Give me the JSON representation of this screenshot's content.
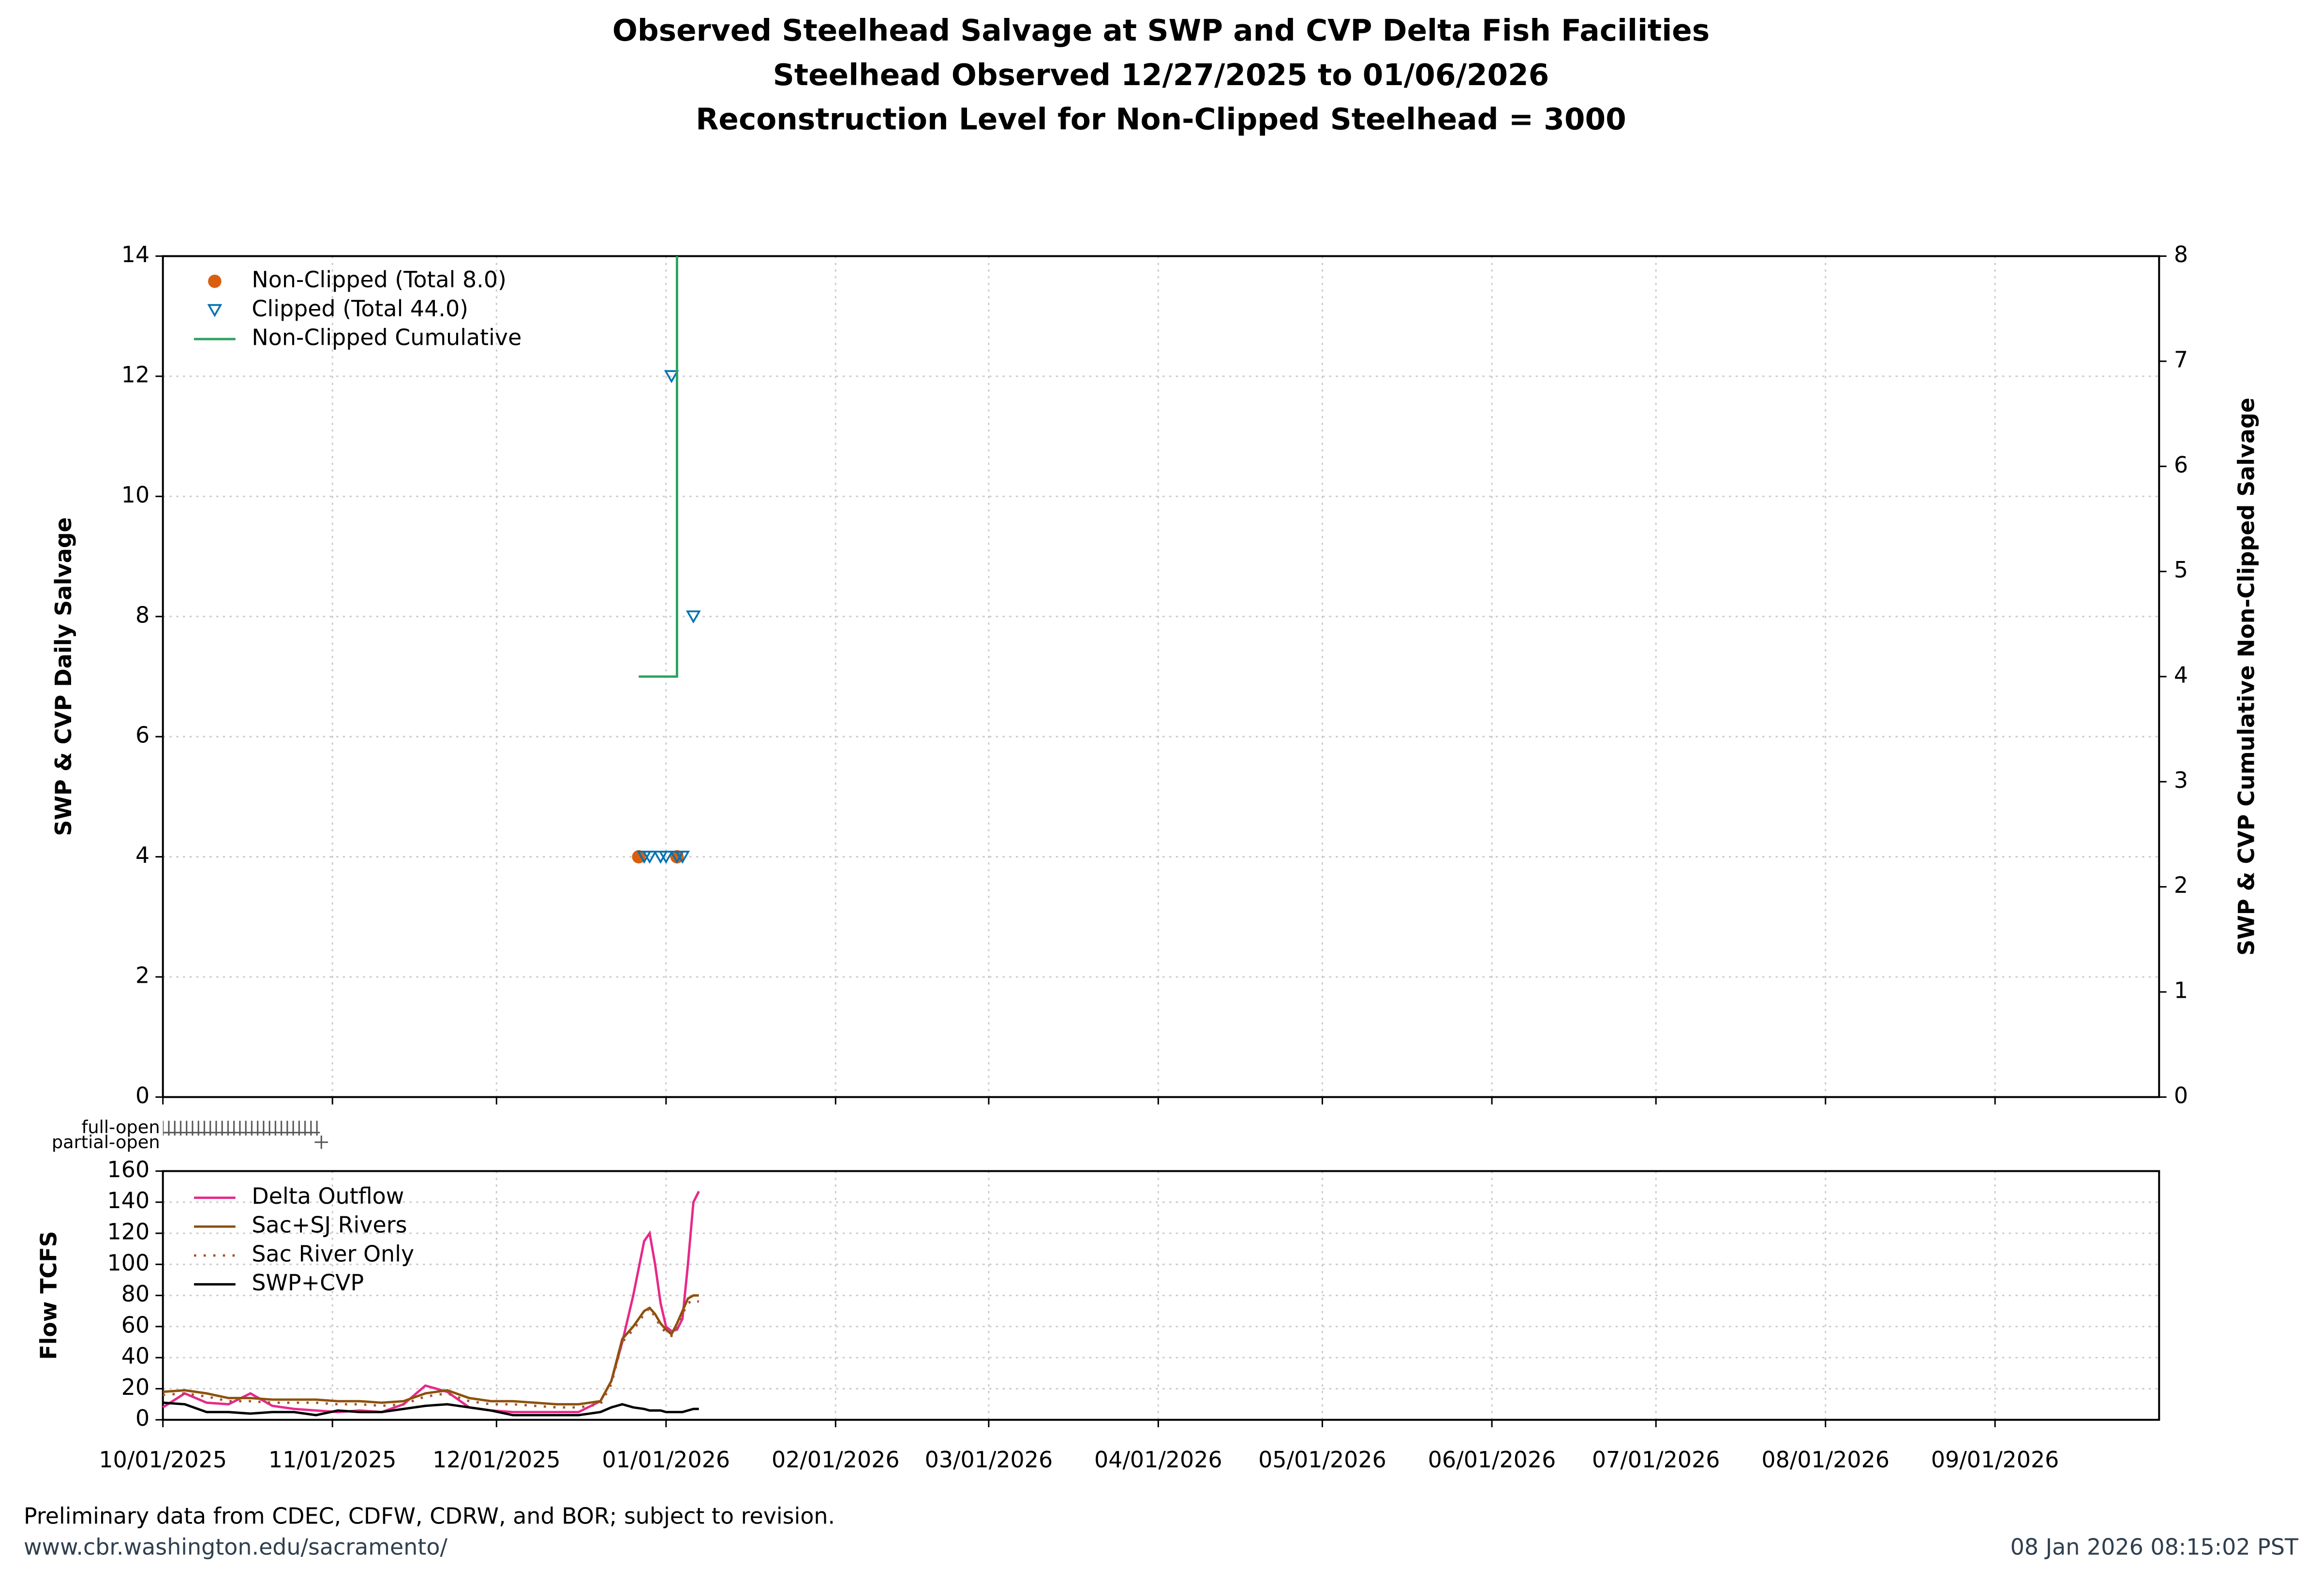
{
  "chart_data": [
    {
      "type": "scatter",
      "title": [
        "Observed Steelhead Salvage at SWP and CVP Delta Fish Facilities",
        "Steelhead Observed 12/27/2025 to 01/06/2026",
        "Reconstruction Level for Non-Clipped Steelhead = 3000"
      ],
      "ylabel": "SWP & CVP Daily Salvage",
      "y2label": "SWP & CVP Cumulative Non-Clipped Salvage",
      "ylim": [
        0,
        14
      ],
      "yticks": [
        0,
        2,
        4,
        6,
        8,
        10,
        12,
        14
      ],
      "y2lim": [
        0,
        8
      ],
      "y2ticks": [
        0,
        1,
        2,
        3,
        4,
        5,
        6,
        7,
        8
      ],
      "grid": true,
      "legend": "upper left",
      "gate_labels": [
        "full-open",
        "partial-open"
      ],
      "series": [
        {
          "name": "Non-Clipped (Total 8.0)",
          "color": "#d95f0e",
          "marker": "circle",
          "x": [
            "12/27/2025",
            "01/03/2026"
          ],
          "values": [
            4,
            4
          ]
        },
        {
          "name": "Clipped (Total 44.0)",
          "color": "#0072b2",
          "marker": "triangle-down",
          "x": [
            "12/28/2025",
            "12/29/2025",
            "12/31/2025",
            "01/01/2026",
            "01/02/2026",
            "01/03/2026",
            "01/04/2026",
            "01/06/2026"
          ],
          "values": [
            4,
            4,
            4,
            4,
            12,
            4,
            4,
            8
          ]
        },
        {
          "name": "Non-Clipped Cumulative",
          "color": "#2ca25f",
          "marker": "line",
          "axis": "y2",
          "x": [
            "12/27/2025",
            "01/03/2026",
            "01/03/2026"
          ],
          "values": [
            4,
            4,
            8
          ]
        }
      ]
    },
    {
      "type": "line",
      "ylabel": "Flow TCFS",
      "ylim": [
        0,
        160
      ],
      "yticks": [
        0,
        20,
        40,
        60,
        80,
        100,
        120,
        140,
        160
      ],
      "xlim": [
        "10/01/2025",
        "09/30/2026"
      ],
      "xticks": [
        "10/01/2025",
        "11/01/2025",
        "12/01/2025",
        "01/01/2026",
        "02/01/2026",
        "03/01/2026",
        "04/01/2026",
        "05/01/2026",
        "06/01/2026",
        "07/01/2026",
        "08/01/2026",
        "09/01/2026"
      ],
      "grid": true,
      "legend": "upper left",
      "x": [
        "10/01/2025",
        "10/05/2025",
        "10/09/2025",
        "10/13/2025",
        "10/17/2025",
        "10/21/2025",
        "10/25/2025",
        "10/29/2025",
        "11/02/2025",
        "11/06/2025",
        "11/10/2025",
        "11/14/2025",
        "11/18/2025",
        "11/22/2025",
        "11/26/2025",
        "11/30/2025",
        "12/04/2025",
        "12/08/2025",
        "12/12/2025",
        "12/16/2025",
        "12/20/2025",
        "12/22/2025",
        "12/24/2025",
        "12/26/2025",
        "12/28/2025",
        "12/29/2025",
        "12/30/2025",
        "12/31/2025",
        "01/01/2026",
        "01/02/2026",
        "01/03/2026",
        "01/04/2026",
        "01/05/2026",
        "01/06/2026",
        "01/07/2026"
      ],
      "series": [
        {
          "name": "Delta Outflow",
          "color": "#e7298a",
          "style": "solid",
          "values": [
            8,
            17,
            11,
            10,
            17,
            9,
            7,
            6,
            5,
            6,
            5,
            10,
            22,
            18,
            8,
            6,
            5,
            5,
            5,
            5,
            12,
            25,
            50,
            80,
            115,
            120,
            100,
            75,
            60,
            57,
            58,
            65,
            100,
            140,
            147
          ]
        },
        {
          "name": "Sac+SJ Rivers",
          "color": "#8c510a",
          "style": "solid",
          "values": [
            18,
            19,
            17,
            14,
            14,
            13,
            13,
            13,
            12,
            12,
            11,
            12,
            17,
            19,
            14,
            12,
            12,
            11,
            10,
            10,
            12,
            25,
            52,
            60,
            70,
            72,
            68,
            62,
            58,
            55,
            62,
            70,
            78,
            80,
            80
          ]
        },
        {
          "name": "Sac River Only",
          "color": "#a0522d",
          "style": "dotted",
          "values": [
            16,
            17,
            15,
            12,
            12,
            11,
            11,
            11,
            10,
            10,
            9,
            10,
            15,
            17,
            12,
            10,
            10,
            9,
            8,
            8,
            10,
            23,
            50,
            58,
            68,
            72,
            66,
            60,
            56,
            54,
            60,
            68,
            75,
            77,
            76
          ]
        },
        {
          "name": "SWP+CVP",
          "color": "#000000",
          "style": "solid",
          "values": [
            11,
            10,
            5,
            5,
            4,
            5,
            5,
            3,
            6,
            5,
            5,
            7,
            9,
            10,
            8,
            6,
            3,
            3,
            3,
            3,
            5,
            8,
            10,
            8,
            7,
            6,
            6,
            6,
            5,
            5,
            5,
            5,
            6,
            7,
            7
          ]
        }
      ]
    }
  ],
  "footer": {
    "note": "Preliminary data from CDEC, CDFW, CDRW, and BOR; subject to revision.",
    "url": "www.cbr.washington.edu/sacramento/",
    "timestamp": "08 Jan 2026 08:15:02 PST"
  }
}
